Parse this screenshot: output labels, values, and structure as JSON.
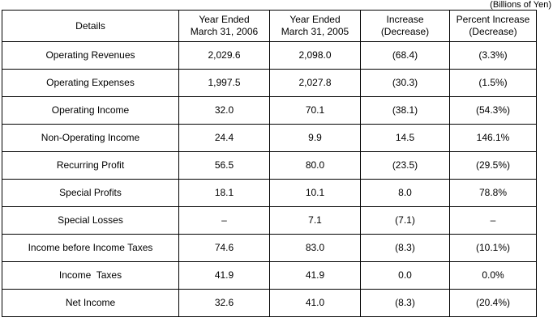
{
  "note": "(Billions of Yen)",
  "table": {
    "headers": [
      "Details",
      "Year Ended\nMarch 31, 2006",
      "Year Ended\nMarch 31, 2005",
      "Increase\n(Decrease)",
      "Percent Increase\n(Decrease)"
    ],
    "rows": [
      {
        "label": "Operating Revenues",
        "values": [
          "2,029.6",
          "2,098.0",
          "(68.4)",
          "(3.3%)"
        ]
      },
      {
        "label": "Operating Expenses",
        "values": [
          "1,997.5",
          "2,027.8",
          "(30.3)",
          "(1.5%)"
        ]
      },
      {
        "label": "Operating Income",
        "values": [
          "32.0",
          "70.1",
          "(38.1)",
          "(54.3%)"
        ]
      },
      {
        "label": "Non-Operating Income",
        "values": [
          "24.4",
          "9.9",
          "14.5",
          "146.1%"
        ]
      },
      {
        "label": "Recurring Profit",
        "values": [
          "56.5",
          "80.0",
          "(23.5)",
          "(29.5%)"
        ]
      },
      {
        "label": "Special Profits",
        "values": [
          "18.1",
          "10.1",
          "8.0",
          "78.8%"
        ]
      },
      {
        "label": "Special Losses",
        "values": [
          "–",
          "7.1",
          "(7.1)",
          "–"
        ]
      },
      {
        "label": "Income before Income Taxes",
        "values": [
          "74.6",
          "83.0",
          "(8.3)",
          "(10.1%)"
        ]
      },
      {
        "label": "Income  Taxes",
        "values": [
          "41.9",
          "41.9",
          "0.0",
          "0.0%"
        ]
      },
      {
        "label": "Net Income",
        "values": [
          "32.6",
          "41.0",
          "(8.3)",
          "(20.4%)"
        ]
      }
    ]
  }
}
